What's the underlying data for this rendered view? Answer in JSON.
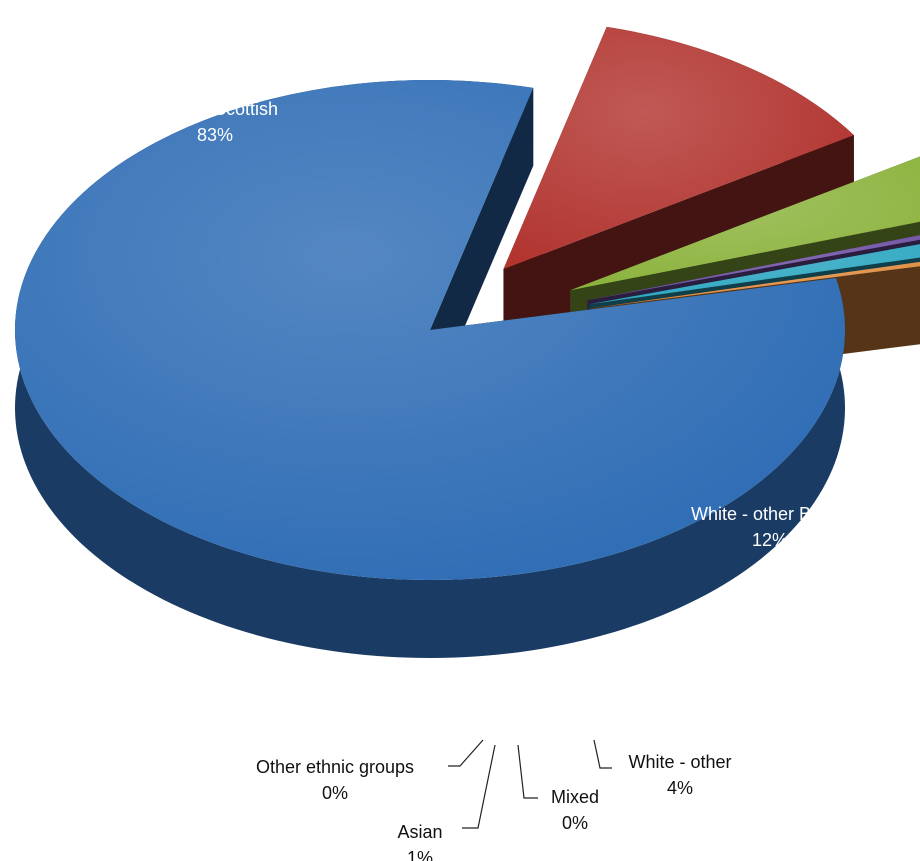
{
  "chart_data": {
    "type": "pie",
    "title": "",
    "style": "3d-exploded",
    "label_format": "category and percentage",
    "slices": [
      {
        "name": "White - Scottish",
        "value": 83,
        "label": "83%",
        "color": "#2f6db5"
      },
      {
        "name": "White - other British",
        "value": 12,
        "label": "12%",
        "color": "#b23530"
      },
      {
        "name": "White - other",
        "value": 4,
        "label": "4%",
        "color": "#8cb33d"
      },
      {
        "name": "Mixed",
        "value": 0,
        "label": "0%",
        "color": "#6d4ea3"
      },
      {
        "name": "Asian",
        "value": 1,
        "label": "1%",
        "color": "#2aa6c0"
      },
      {
        "name": "Other ethnic groups",
        "value": 0,
        "label": "0%",
        "color": "#e08a3c"
      }
    ]
  }
}
